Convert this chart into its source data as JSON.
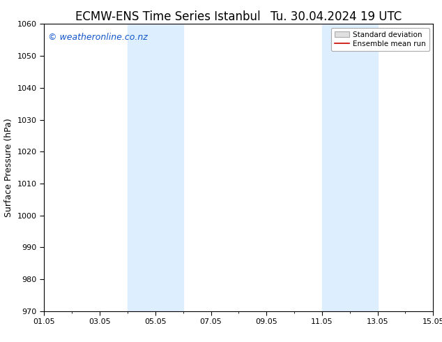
{
  "title_left": "ECMW-ENS Time Series Istanbul",
  "title_right": "Tu. 30.04.2024 19 UTC",
  "ylabel": "Surface Pressure (hPa)",
  "ylim": [
    970,
    1060
  ],
  "yticks": [
    970,
    980,
    990,
    1000,
    1010,
    1020,
    1030,
    1040,
    1050,
    1060
  ],
  "xlim": [
    0,
    14
  ],
  "xtick_labels": [
    "01.05",
    "03.05",
    "05.05",
    "07.05",
    "09.05",
    "11.05",
    "13.05",
    "15.05"
  ],
  "xtick_positions": [
    0,
    2,
    4,
    6,
    8,
    10,
    12,
    14
  ],
  "shade_regions": [
    {
      "x_start": 3.0,
      "x_end": 5.0
    },
    {
      "x_start": 10.0,
      "x_end": 12.0
    }
  ],
  "shade_color": "#ddeeff",
  "background_color": "#ffffff",
  "watermark_text": "© weatheronline.co.nz",
  "watermark_color": "#1155cc",
  "legend_items": [
    {
      "label": "Standard deviation",
      "color": "#cccccc",
      "type": "rect"
    },
    {
      "label": "Ensemble mean run",
      "color": "#cc0000",
      "type": "line"
    }
  ],
  "title_fontsize": 12,
  "axis_label_fontsize": 9,
  "tick_fontsize": 8,
  "watermark_fontsize": 9
}
